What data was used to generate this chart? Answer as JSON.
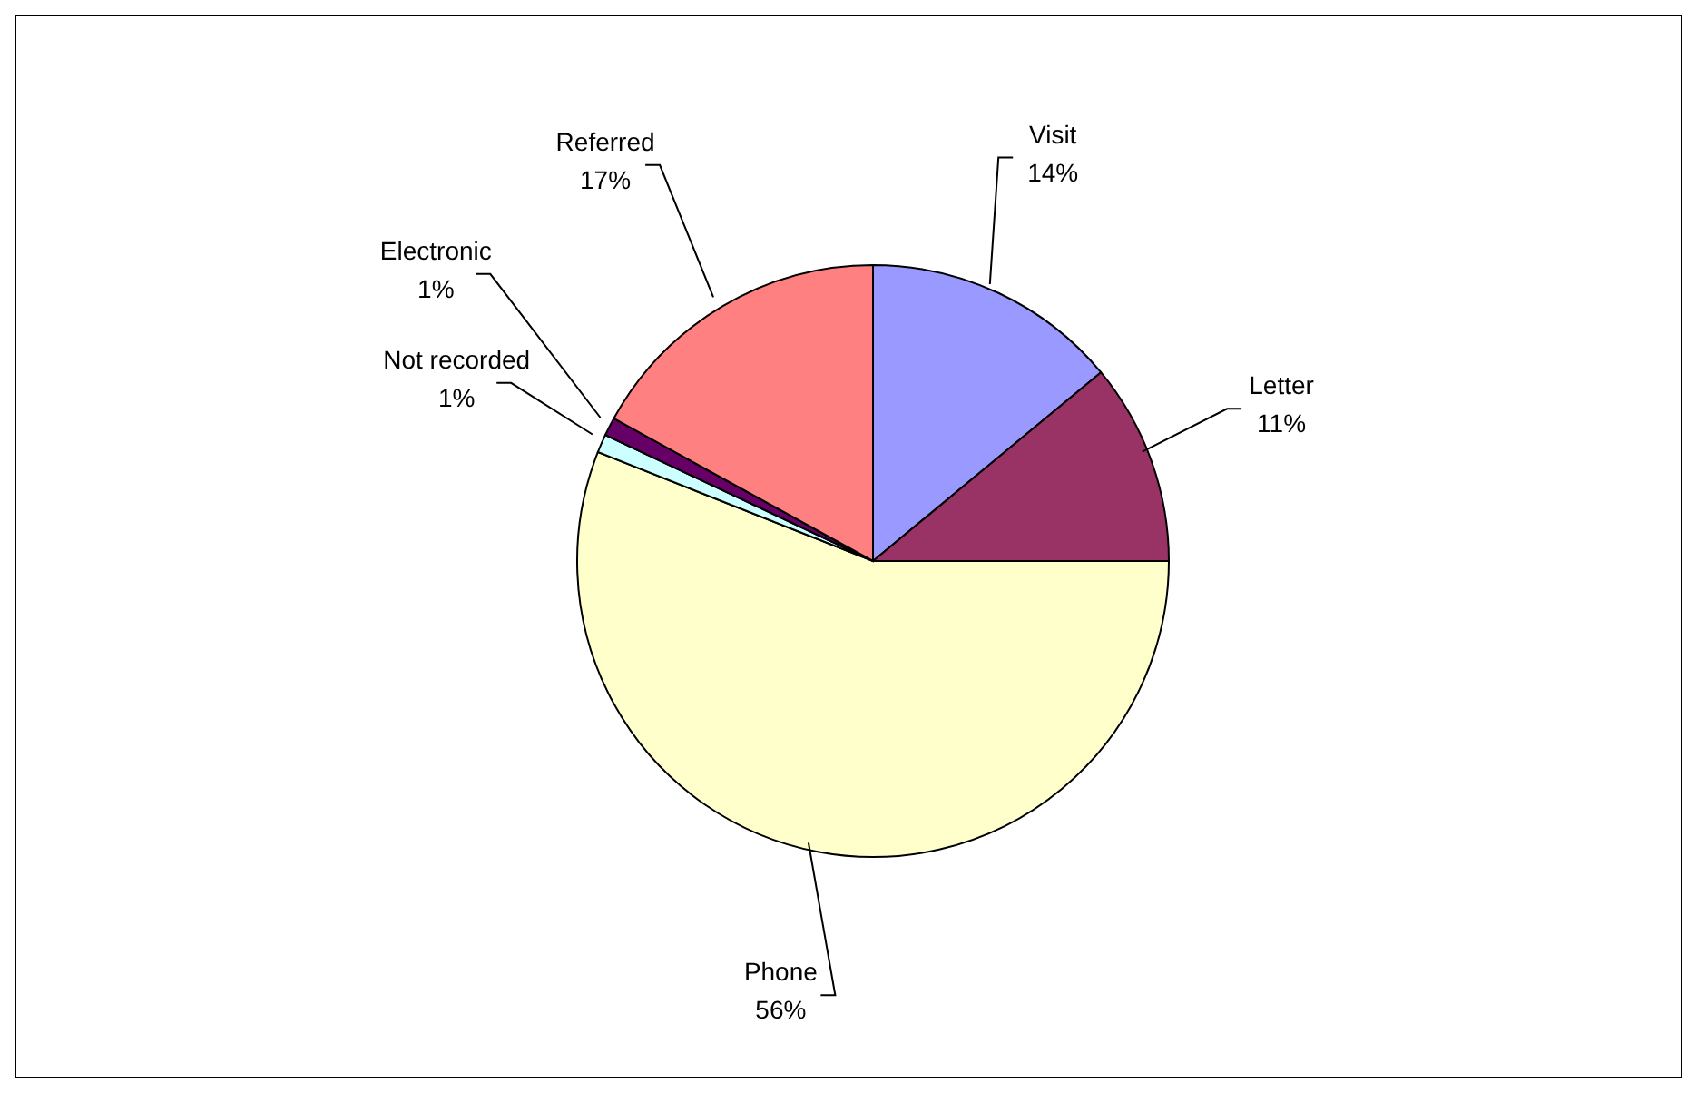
{
  "chart_data": {
    "type": "pie",
    "categories": [
      "Visit",
      "Letter",
      "Phone",
      "Not recorded",
      "Electronic",
      "Referred"
    ],
    "values": [
      14,
      11,
      56,
      1,
      1,
      17
    ],
    "colors": [
      "#9999ff",
      "#993366",
      "#ffffcc",
      "#ccffff",
      "#660066",
      "#ff8080"
    ],
    "value_labels": [
      "14%",
      "11%",
      "56%",
      "1%",
      "1%",
      "17%"
    ],
    "legend": false
  }
}
